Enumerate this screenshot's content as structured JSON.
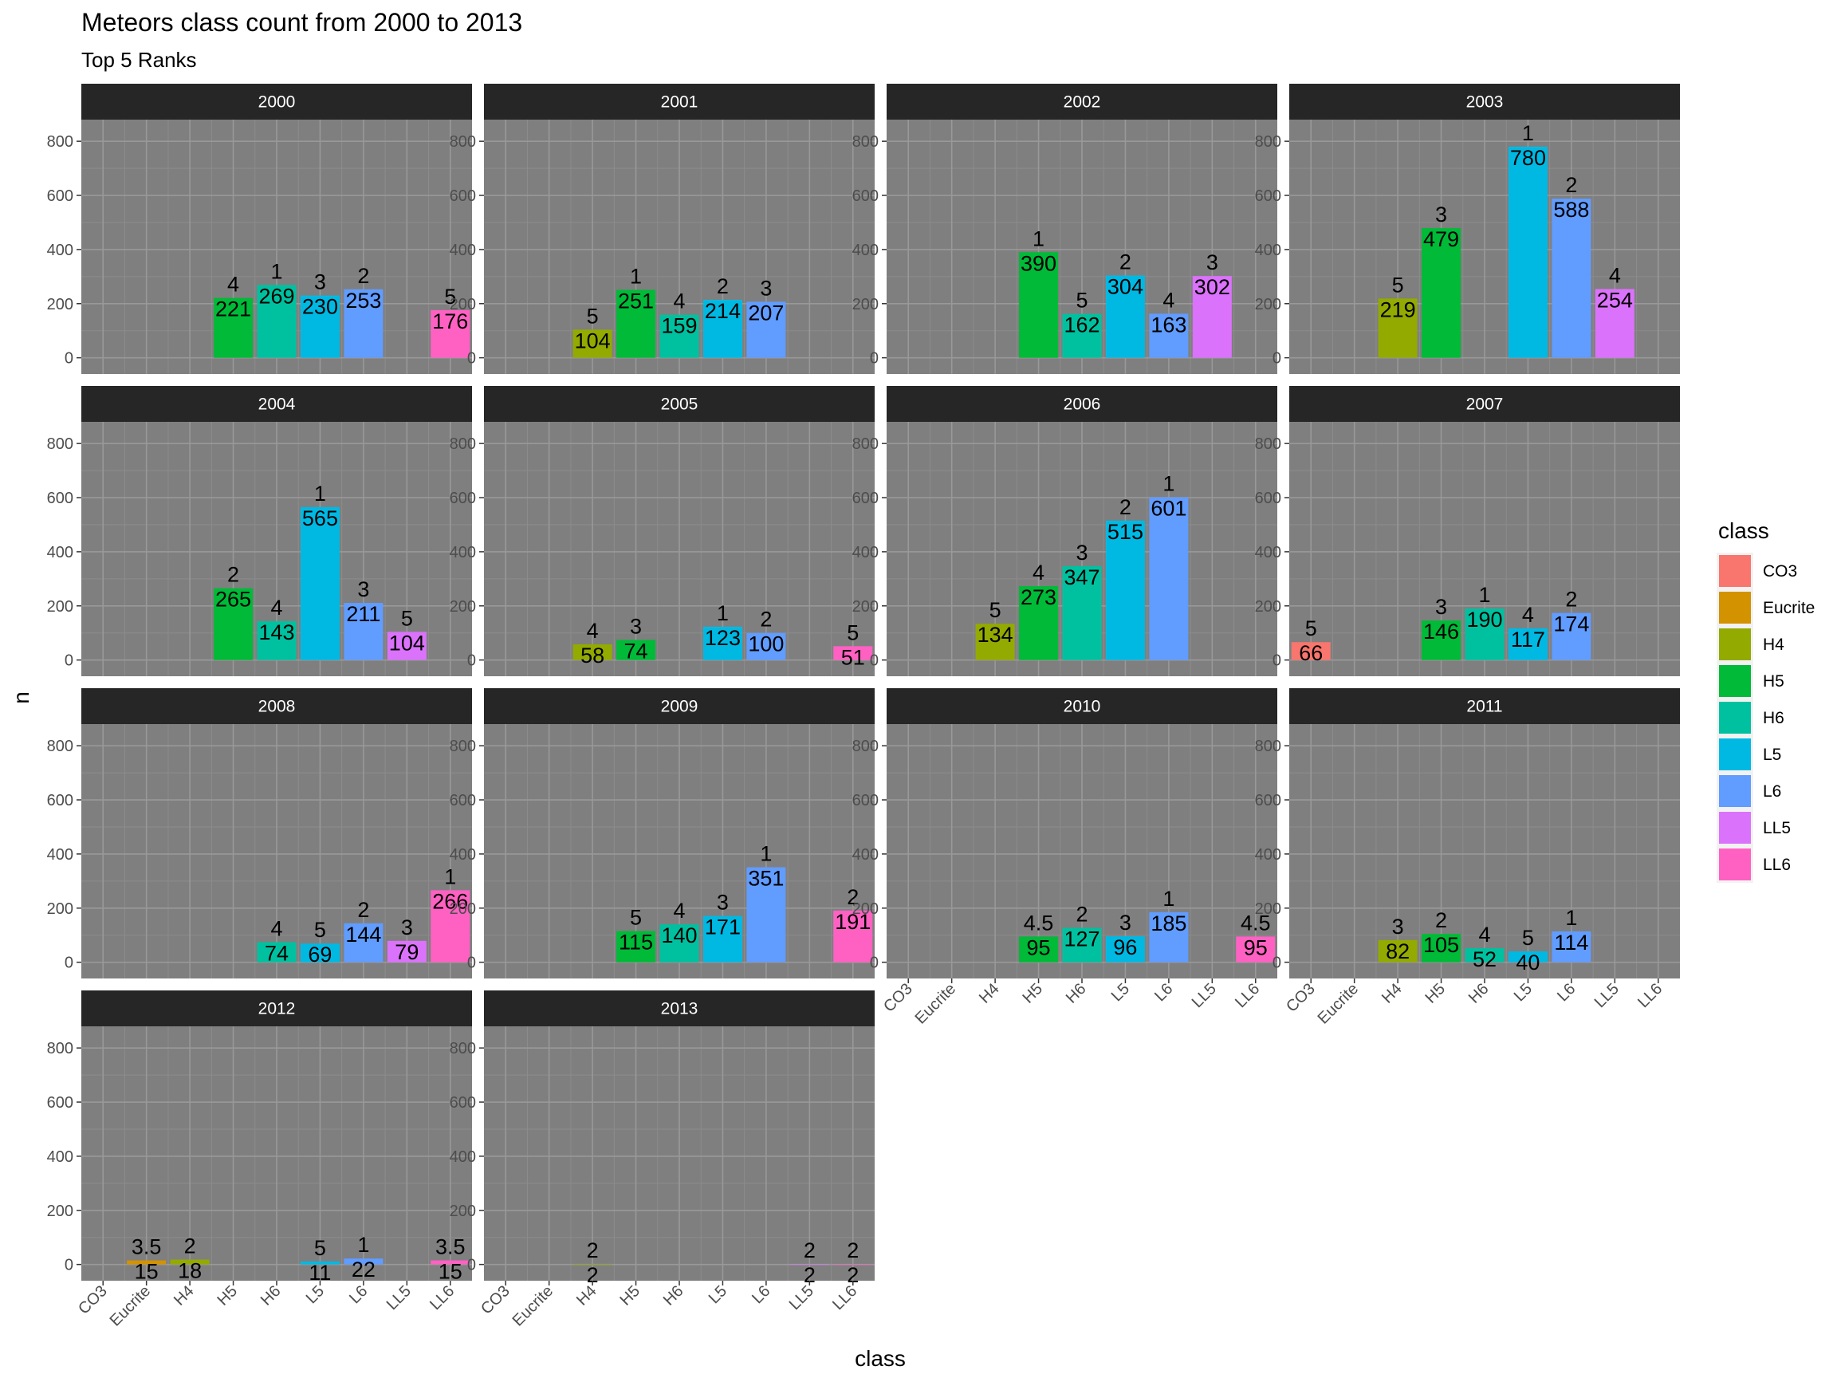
{
  "chart_data": {
    "type": "bar",
    "title": "Meteors class count from 2000 to 2013",
    "subtitle": "Top 5 Ranks",
    "xlabel": "class",
    "ylabel": "n",
    "ylim": [
      -60,
      880
    ],
    "yticks": [
      0,
      200,
      400,
      600,
      800
    ],
    "categories": [
      "CO3",
      "Eucrite",
      "H4",
      "H5",
      "H6",
      "L5",
      "L6",
      "LL5",
      "LL6"
    ],
    "colors": {
      "CO3": "#F8766D",
      "Eucrite": "#D39200",
      "H4": "#93AA00",
      "H5": "#00BA38",
      "H6": "#00C19F",
      "L5": "#00B9E3",
      "L6": "#619CFF",
      "LL5": "#DB72FB",
      "LL6": "#FF61C3"
    },
    "legend": {
      "title": "class",
      "position": "right"
    },
    "panel_background": "#7f7f7f",
    "strip_background": "#262626",
    "grid": true,
    "panels": [
      {
        "year": "2000",
        "bars": [
          {
            "class": "H5",
            "n": 221,
            "rank": "4"
          },
          {
            "class": "H6",
            "n": 269,
            "rank": "1"
          },
          {
            "class": "L5",
            "n": 230,
            "rank": "3"
          },
          {
            "class": "L6",
            "n": 253,
            "rank": "2"
          },
          {
            "class": "LL6",
            "n": 176,
            "rank": "5"
          }
        ]
      },
      {
        "year": "2001",
        "bars": [
          {
            "class": "H4",
            "n": 104,
            "rank": "5"
          },
          {
            "class": "H5",
            "n": 251,
            "rank": "1"
          },
          {
            "class": "H6",
            "n": 159,
            "rank": "4"
          },
          {
            "class": "L5",
            "n": 214,
            "rank": "2"
          },
          {
            "class": "L6",
            "n": 207,
            "rank": "3"
          }
        ]
      },
      {
        "year": "2002",
        "bars": [
          {
            "class": "H5",
            "n": 390,
            "rank": "1"
          },
          {
            "class": "H6",
            "n": 162,
            "rank": "5"
          },
          {
            "class": "L5",
            "n": 304,
            "rank": "2"
          },
          {
            "class": "L6",
            "n": 163,
            "rank": "4"
          },
          {
            "class": "LL5",
            "n": 302,
            "rank": "3"
          }
        ]
      },
      {
        "year": "2003",
        "bars": [
          {
            "class": "H4",
            "n": 219,
            "rank": "5"
          },
          {
            "class": "H5",
            "n": 479,
            "rank": "3"
          },
          {
            "class": "L5",
            "n": 780,
            "rank": "1"
          },
          {
            "class": "L6",
            "n": 588,
            "rank": "2"
          },
          {
            "class": "LL5",
            "n": 254,
            "rank": "4"
          }
        ]
      },
      {
        "year": "2004",
        "bars": [
          {
            "class": "H5",
            "n": 265,
            "rank": "2"
          },
          {
            "class": "H6",
            "n": 143,
            "rank": "4"
          },
          {
            "class": "L5",
            "n": 565,
            "rank": "1"
          },
          {
            "class": "L6",
            "n": 211,
            "rank": "3"
          },
          {
            "class": "LL5",
            "n": 104,
            "rank": "5"
          }
        ]
      },
      {
        "year": "2005",
        "bars": [
          {
            "class": "H4",
            "n": 58,
            "rank": "4"
          },
          {
            "class": "H5",
            "n": 74,
            "rank": "3"
          },
          {
            "class": "L5",
            "n": 123,
            "rank": "1"
          },
          {
            "class": "L6",
            "n": 100,
            "rank": "2"
          },
          {
            "class": "LL6",
            "n": 51,
            "rank": "5"
          }
        ]
      },
      {
        "year": "2006",
        "bars": [
          {
            "class": "H4",
            "n": 134,
            "rank": "5"
          },
          {
            "class": "H5",
            "n": 273,
            "rank": "4"
          },
          {
            "class": "H6",
            "n": 347,
            "rank": "3"
          },
          {
            "class": "L5",
            "n": 515,
            "rank": "2"
          },
          {
            "class": "L6",
            "n": 601,
            "rank": "1"
          }
        ]
      },
      {
        "year": "2007",
        "bars": [
          {
            "class": "CO3",
            "n": 66,
            "rank": "5"
          },
          {
            "class": "H5",
            "n": 146,
            "rank": "3"
          },
          {
            "class": "H6",
            "n": 190,
            "rank": "1"
          },
          {
            "class": "L5",
            "n": 117,
            "rank": "4"
          },
          {
            "class": "L6",
            "n": 174,
            "rank": "2"
          }
        ]
      },
      {
        "year": "2008",
        "bars": [
          {
            "class": "H6",
            "n": 74,
            "rank": "4"
          },
          {
            "class": "L5",
            "n": 69,
            "rank": "5"
          },
          {
            "class": "L6",
            "n": 144,
            "rank": "2"
          },
          {
            "class": "LL5",
            "n": 79,
            "rank": "3"
          },
          {
            "class": "LL6",
            "n": 266,
            "rank": "1"
          }
        ]
      },
      {
        "year": "2009",
        "bars": [
          {
            "class": "H5",
            "n": 115,
            "rank": "5"
          },
          {
            "class": "H6",
            "n": 140,
            "rank": "4"
          },
          {
            "class": "L5",
            "n": 171,
            "rank": "3"
          },
          {
            "class": "L6",
            "n": 351,
            "rank": "1"
          },
          {
            "class": "LL6",
            "n": 191,
            "rank": "2"
          }
        ]
      },
      {
        "year": "2010",
        "bars": [
          {
            "class": "H5",
            "n": 95,
            "rank": "4.5"
          },
          {
            "class": "H6",
            "n": 127,
            "rank": "2"
          },
          {
            "class": "L5",
            "n": 96,
            "rank": "3"
          },
          {
            "class": "L6",
            "n": 185,
            "rank": "1"
          },
          {
            "class": "LL6",
            "n": 95,
            "rank": "4.5"
          }
        ]
      },
      {
        "year": "2011",
        "bars": [
          {
            "class": "H4",
            "n": 82,
            "rank": "3"
          },
          {
            "class": "H5",
            "n": 105,
            "rank": "2"
          },
          {
            "class": "H6",
            "n": 52,
            "rank": "4"
          },
          {
            "class": "L5",
            "n": 40,
            "rank": "5"
          },
          {
            "class": "L6",
            "n": 114,
            "rank": "1"
          }
        ]
      },
      {
        "year": "2012",
        "bars": [
          {
            "class": "Eucrite",
            "n": 15,
            "rank": "3.5"
          },
          {
            "class": "H4",
            "n": 18,
            "rank": "2"
          },
          {
            "class": "L5",
            "n": 11,
            "rank": "5"
          },
          {
            "class": "L6",
            "n": 22,
            "rank": "1"
          },
          {
            "class": "LL6",
            "n": 15,
            "rank": "3.5"
          }
        ]
      },
      {
        "year": "2013",
        "bars": [
          {
            "class": "H4",
            "n": 2,
            "rank": "2"
          },
          {
            "class": "LL5",
            "n": 2,
            "rank": "2"
          },
          {
            "class": "LL6",
            "n": 2,
            "rank": "2"
          }
        ]
      }
    ]
  }
}
